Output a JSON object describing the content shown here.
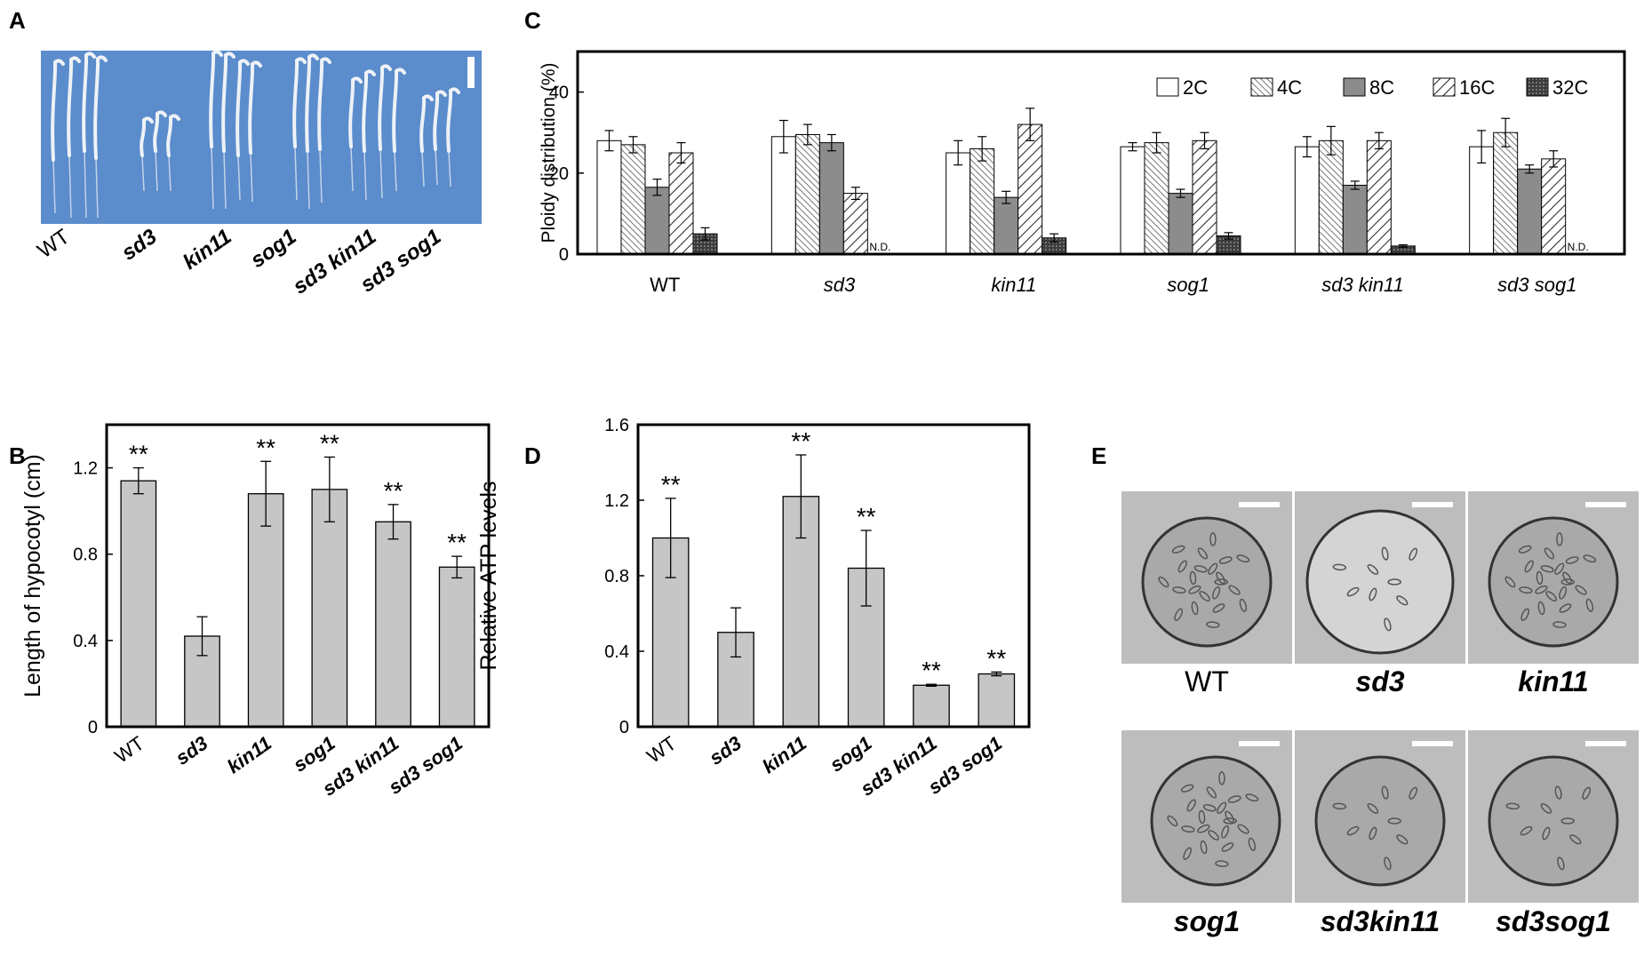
{
  "panel_labels": {
    "a": "A",
    "b": "B",
    "c": "C",
    "d": "D",
    "e": "E"
  },
  "colors": {
    "photo_bg": "#5b8ccc",
    "photo_bg_dark": "#4a7bbd",
    "seedling": "#eef2f6",
    "bar_gray": "#c6c6c6",
    "bar_8c": "#8c8c8c",
    "bar_32c": "#3c3c3c",
    "axis": "#000000",
    "em_bg": "#bdbdbd"
  },
  "panel_a": {
    "labels": [
      "WT",
      "sd3",
      "kin11",
      "sog1",
      "sd3 kin11",
      "sd3 sog1"
    ],
    "italic": [
      false,
      true,
      true,
      true,
      true,
      true
    ]
  },
  "chart_data": [
    {
      "id": "C",
      "type": "bar",
      "title": "",
      "ylabel": "Ploidy distribution (%)",
      "ylim": [
        0,
        50
      ],
      "yticks": [
        0,
        20,
        40
      ],
      "categories": [
        "WT",
        "sd3",
        "kin11",
        "sog1",
        "sd3 kin11",
        "sd3 sog1"
      ],
      "series": [
        {
          "name": "2C",
          "values": [
            28,
            29,
            25,
            26.5,
            26.5,
            26.5
          ],
          "errors": [
            2.5,
            4,
            3,
            1,
            2.5,
            4
          ]
        },
        {
          "name": "4C",
          "values": [
            27,
            29.5,
            26,
            27.5,
            28,
            30
          ],
          "errors": [
            2,
            2.5,
            3,
            2.5,
            3.5,
            3.5
          ]
        },
        {
          "name": "8C",
          "values": [
            16.5,
            27.5,
            14,
            15,
            17,
            21
          ],
          "errors": [
            2,
            2,
            1.5,
            1,
            1,
            1
          ]
        },
        {
          "name": "16C",
          "values": [
            25,
            15,
            32,
            28,
            28,
            23.5
          ],
          "errors": [
            2.5,
            1.5,
            4,
            2,
            2,
            2
          ]
        },
        {
          "name": "32C",
          "values": [
            5,
            null,
            4,
            4.5,
            2,
            null
          ],
          "errors": [
            1.5,
            0,
            1,
            0.8,
            0.3,
            0
          ]
        }
      ],
      "annotations": [
        "N.D.",
        "N.D."
      ],
      "legend_position": "top-right"
    },
    {
      "id": "B",
      "type": "bar",
      "title": "",
      "ylabel": "Length of hypocotyl (cm)",
      "ylim": [
        0,
        1.4
      ],
      "yticks": [
        0,
        0.4,
        0.8,
        1.2
      ],
      "ytick_labels": [
        "0",
        "0.4",
        "0.8",
        "1.2"
      ],
      "categories": [
        "WT",
        "sd3",
        "kin11",
        "sog1",
        "sd3 kin11",
        "sd3 sog1"
      ],
      "values": [
        1.14,
        0.42,
        1.08,
        1.1,
        0.95,
        0.74
      ],
      "errors": [
        0.06,
        0.09,
        0.15,
        0.15,
        0.08,
        0.05
      ],
      "significance": [
        "**",
        "",
        "**",
        "**",
        "**",
        "**"
      ]
    },
    {
      "id": "D",
      "type": "bar",
      "title": "",
      "ylabel": "Relative ATP levels",
      "ylim": [
        0,
        1.6
      ],
      "yticks": [
        0,
        0.4,
        0.8,
        1.2,
        1.6
      ],
      "ytick_labels": [
        "0",
        "0.4",
        "0.8",
        "1.2",
        "1.6"
      ],
      "categories": [
        "WT",
        "sd3",
        "kin11",
        "sog1",
        "sd3 kin11",
        "sd3 sog1"
      ],
      "values": [
        1.0,
        0.5,
        1.22,
        0.84,
        0.22,
        0.28
      ],
      "errors": [
        0.21,
        0.13,
        0.22,
        0.2,
        0.005,
        0.01
      ],
      "significance": [
        "**",
        "",
        "**",
        "**",
        "**",
        "**"
      ]
    }
  ],
  "panel_e": {
    "labels": [
      "WT",
      "sd3",
      "kin11",
      "sog1",
      "sd3kin11",
      "sd3sog1"
    ],
    "italic": [
      false,
      true,
      true,
      true,
      true,
      true
    ],
    "bold": [
      false,
      true,
      true,
      true,
      true,
      true
    ]
  }
}
